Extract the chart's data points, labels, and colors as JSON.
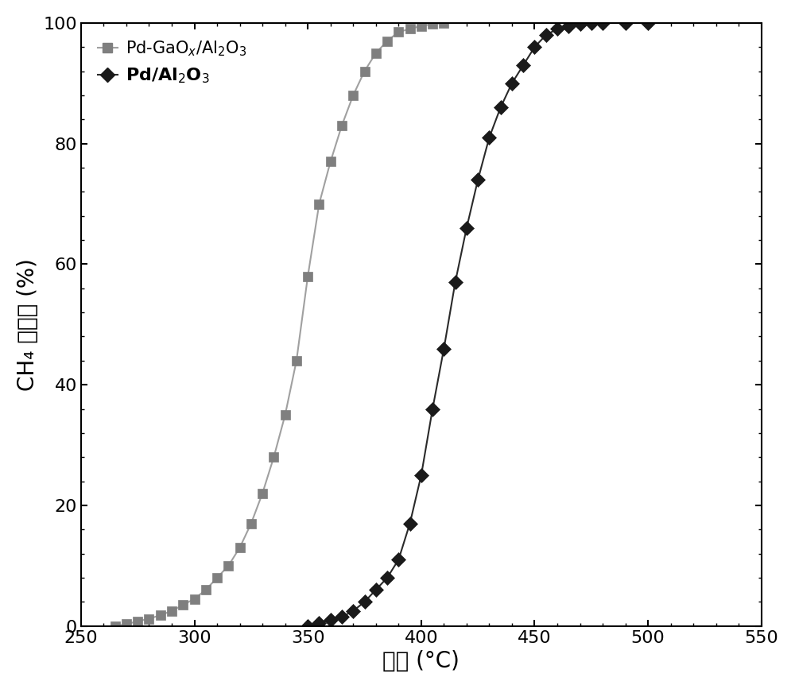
{
  "series1_color": "#7f7f7f",
  "series2_color": "#1a1a1a",
  "series1_line_color": "#a0a0a0",
  "series2_line_color": "#2a2a2a",
  "series1_x": [
    265,
    270,
    275,
    280,
    285,
    290,
    295,
    300,
    305,
    310,
    315,
    320,
    325,
    330,
    335,
    340,
    345,
    350,
    355,
    360,
    365,
    370,
    375,
    380,
    385,
    390,
    395,
    400,
    405,
    410
  ],
  "series1_y": [
    0,
    0.3,
    0.8,
    1.2,
    1.8,
    2.5,
    3.5,
    4.5,
    6,
    8,
    10,
    13,
    17,
    22,
    28,
    35,
    44,
    58,
    70,
    77,
    83,
    88,
    92,
    95,
    97,
    98.5,
    99,
    99.5,
    99.8,
    100
  ],
  "series2_x": [
    350,
    355,
    360,
    365,
    370,
    375,
    380,
    385,
    390,
    395,
    400,
    405,
    410,
    415,
    420,
    425,
    430,
    435,
    440,
    445,
    450,
    455,
    460,
    465,
    470,
    475,
    480,
    490,
    500
  ],
  "series2_y": [
    0,
    0.5,
    1,
    1.5,
    2.5,
    4,
    6,
    8,
    11,
    17,
    25,
    36,
    46,
    57,
    66,
    74,
    81,
    86,
    90,
    93,
    96,
    98,
    99,
    99.5,
    99.8,
    100,
    100,
    100,
    100
  ],
  "xlim": [
    250,
    550
  ],
  "ylim": [
    0,
    100
  ],
  "xticks": [
    250,
    300,
    350,
    400,
    450,
    500,
    550
  ],
  "yticks": [
    0,
    20,
    40,
    60,
    80,
    100
  ],
  "marker1": "s",
  "marker2": "D",
  "markersize1": 9,
  "markersize2": 9,
  "linewidth": 1.5,
  "tick_fontsize": 16,
  "label_fontsize": 20,
  "legend_fontsize": 15,
  "background_color": "#ffffff"
}
